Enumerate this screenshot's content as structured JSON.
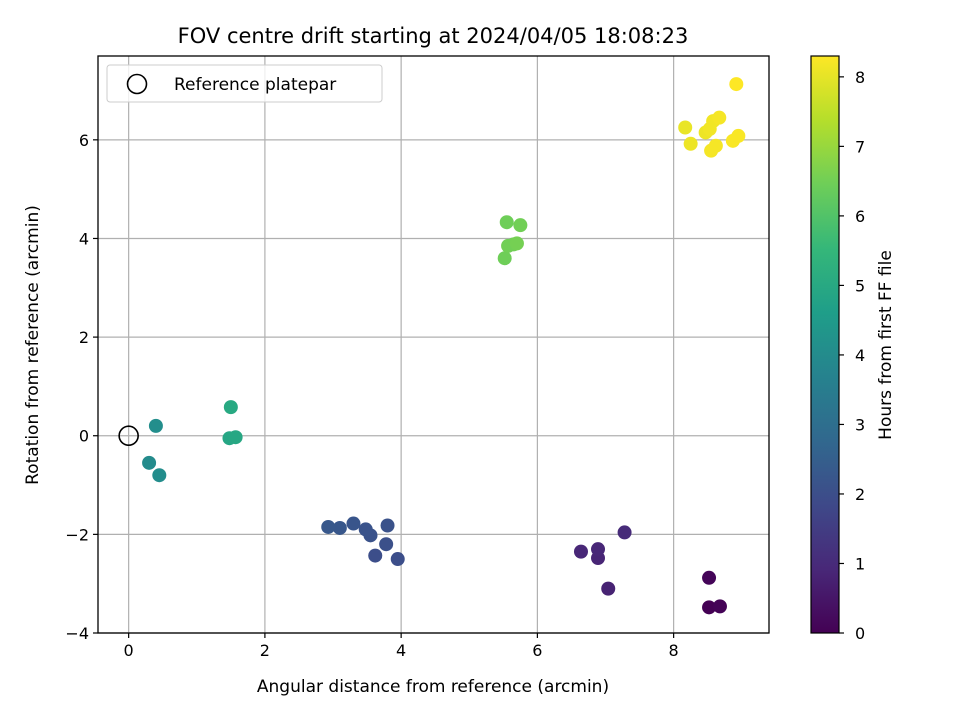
{
  "chart_data": {
    "type": "scatter",
    "title": "FOV centre drift starting at 2024/04/05 18:08:23",
    "xlabel": "Angular distance from reference (arcmin)",
    "ylabel": "Rotation from reference (arcmin)",
    "xlim": [
      -0.45,
      9.4
    ],
    "ylim": [
      -4.0,
      7.7
    ],
    "xticks": [
      0,
      2,
      4,
      6,
      8
    ],
    "yticks": [
      -4,
      -2,
      0,
      2,
      4,
      6
    ],
    "xtick_labels": [
      "0",
      "2",
      "4",
      "6",
      "8"
    ],
    "ytick_labels": [
      "−4",
      "−2",
      "0",
      "2",
      "4",
      "6"
    ],
    "grid": true,
    "legend": {
      "placement": "top-left",
      "entries": [
        "Reference platepar"
      ]
    },
    "reference_point": {
      "x": 0,
      "y": 0
    },
    "colorbar": {
      "label": "Hours from first FF file",
      "range": [
        0,
        8.3
      ],
      "ticks": [
        0,
        1,
        2,
        3,
        4,
        5,
        6,
        7,
        8
      ],
      "tick_labels": [
        "0",
        "1",
        "2",
        "3",
        "4",
        "5",
        "6",
        "7",
        "8"
      ],
      "colormap": "viridis"
    },
    "points": [
      {
        "x": 8.52,
        "y": -3.48,
        "hours": 0.0
      },
      {
        "x": 8.68,
        "y": -3.46,
        "hours": 0.05
      },
      {
        "x": 8.52,
        "y": -2.88,
        "hours": 0.1
      },
      {
        "x": 7.04,
        "y": -3.1,
        "hours": 0.8
      },
      {
        "x": 6.89,
        "y": -2.48,
        "hours": 0.85
      },
      {
        "x": 6.89,
        "y": -2.3,
        "hours": 0.9
      },
      {
        "x": 6.64,
        "y": -2.35,
        "hours": 0.9
      },
      {
        "x": 7.28,
        "y": -1.96,
        "hours": 1.0
      },
      {
        "x": 3.95,
        "y": -2.5,
        "hours": 2.0
      },
      {
        "x": 3.62,
        "y": -2.43,
        "hours": 2.0
      },
      {
        "x": 3.78,
        "y": -2.2,
        "hours": 2.05
      },
      {
        "x": 3.55,
        "y": -2.02,
        "hours": 2.1
      },
      {
        "x": 3.48,
        "y": -1.9,
        "hours": 2.15
      },
      {
        "x": 3.8,
        "y": -1.82,
        "hours": 2.1
      },
      {
        "x": 3.3,
        "y": -1.78,
        "hours": 2.2
      },
      {
        "x": 3.1,
        "y": -1.87,
        "hours": 2.25
      },
      {
        "x": 2.93,
        "y": -1.85,
        "hours": 2.3
      },
      {
        "x": 0.3,
        "y": -0.55,
        "hours": 4.0
      },
      {
        "x": 0.45,
        "y": -0.8,
        "hours": 4.05
      },
      {
        "x": 0.4,
        "y": 0.2,
        "hours": 4.1
      },
      {
        "x": 1.48,
        "y": -0.05,
        "hours": 4.9
      },
      {
        "x": 1.57,
        "y": -0.03,
        "hours": 4.95
      },
      {
        "x": 1.5,
        "y": 0.58,
        "hours": 5.0
      },
      {
        "x": 5.52,
        "y": 3.6,
        "hours": 6.45
      },
      {
        "x": 5.57,
        "y": 3.85,
        "hours": 6.5
      },
      {
        "x": 5.65,
        "y": 3.88,
        "hours": 6.5
      },
      {
        "x": 5.7,
        "y": 3.9,
        "hours": 6.55
      },
      {
        "x": 5.55,
        "y": 4.33,
        "hours": 6.45
      },
      {
        "x": 5.75,
        "y": 4.27,
        "hours": 6.5
      },
      {
        "x": 8.17,
        "y": 6.25,
        "hours": 8.05
      },
      {
        "x": 8.25,
        "y": 5.92,
        "hours": 8.1
      },
      {
        "x": 8.47,
        "y": 6.15,
        "hours": 8.1
      },
      {
        "x": 8.53,
        "y": 6.22,
        "hours": 8.15
      },
      {
        "x": 8.58,
        "y": 6.38,
        "hours": 8.15
      },
      {
        "x": 8.67,
        "y": 6.45,
        "hours": 8.2
      },
      {
        "x": 8.62,
        "y": 5.88,
        "hours": 8.2
      },
      {
        "x": 8.55,
        "y": 5.78,
        "hours": 8.2
      },
      {
        "x": 8.87,
        "y": 5.98,
        "hours": 8.25
      },
      {
        "x": 8.95,
        "y": 6.08,
        "hours": 8.25
      },
      {
        "x": 8.92,
        "y": 7.13,
        "hours": 8.3
      }
    ]
  }
}
